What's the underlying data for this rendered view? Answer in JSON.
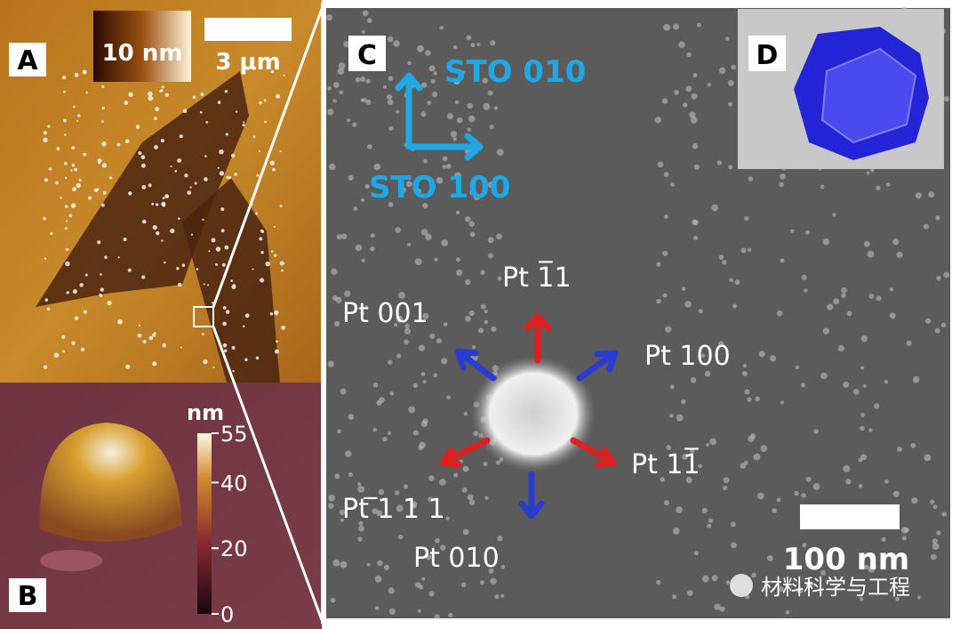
{
  "panels": {
    "A": {
      "label": "A",
      "color_scale": "10 nm",
      "scale_bar": "3 μm"
    },
    "B": {
      "label": "B",
      "colorbar": {
        "label": "nm",
        "range": [
          0,
          55
        ],
        "ticks": [
          0,
          20,
          40,
          55
        ]
      }
    },
    "C": {
      "label": "C",
      "axes": [
        "STO 010",
        "STO 100"
      ],
      "directions": [
        "Pt 1̅1",
        "Pt 001",
        "Pt 100",
        "Pt ̅1 1 1",
        "Pt 11̅",
        "Pt 010"
      ],
      "scale_bar": "100 nm"
    },
    "D": {
      "label": "D"
    }
  },
  "watermark": "材料科学与工程"
}
